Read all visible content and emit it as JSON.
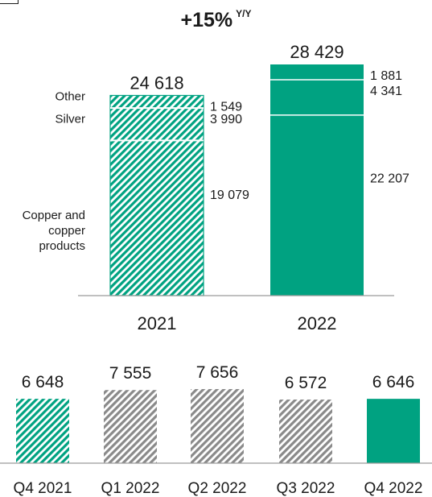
{
  "growth": {
    "value": "+15%",
    "suffix": "Y/Y"
  },
  "colors": {
    "green": "#00a281",
    "grey_hatch": "#8a8a8a",
    "axis": "#9a9a9a"
  },
  "chart_data": [
    {
      "type": "bar",
      "stacked": true,
      "categories": [
        "2021",
        "2022"
      ],
      "series": [
        {
          "name": "Copper and copper products",
          "values": [
            19079,
            22207
          ],
          "value_labels": [
            "19 079",
            "22 207"
          ]
        },
        {
          "name": "Silver",
          "values": [
            3990,
            4341
          ],
          "value_labels": [
            "3 990",
            "4 341"
          ]
        },
        {
          "name": "Other",
          "values": [
            1549,
            1881
          ],
          "value_labels": [
            "1 549",
            "1 881"
          ]
        }
      ],
      "totals": [
        24618,
        28429
      ],
      "total_labels": [
        "24 618",
        "28 429"
      ],
      "bar_styles": [
        "hatched-green",
        "solid-green"
      ],
      "series_label_lines": [
        [
          "Copper and",
          "copper",
          "products"
        ],
        [
          "Silver"
        ],
        [
          "Other"
        ]
      ]
    },
    {
      "type": "bar",
      "categories": [
        "Q4 2021",
        "Q1 2022",
        "Q2 2022",
        "Q3 2022",
        "Q4 2022"
      ],
      "values": [
        6648,
        7555,
        7656,
        6572,
        6646
      ],
      "value_labels": [
        "6 648",
        "7 555",
        "7 656",
        "6 572",
        "6 646"
      ],
      "bar_styles": [
        "hatched-green",
        "hatched-grey",
        "hatched-grey",
        "hatched-grey",
        "solid-green"
      ]
    }
  ]
}
